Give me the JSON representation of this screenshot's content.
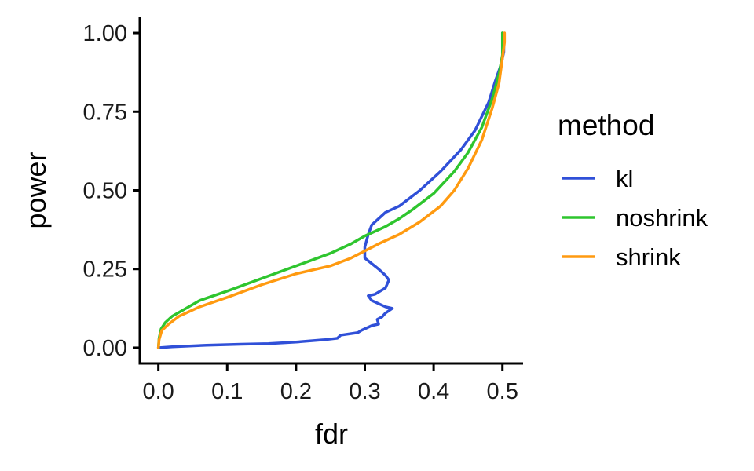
{
  "chart_data": {
    "type": "line",
    "xlabel": "fdr",
    "ylabel": "power",
    "xlim": [
      -0.027,
      0.53
    ],
    "ylim": [
      -0.05,
      1.05
    ],
    "xticks": [
      0.0,
      0.1,
      0.2,
      0.3,
      0.4,
      0.5
    ],
    "xtick_labels": [
      "0.0",
      "0.1",
      "0.2",
      "0.3",
      "0.4",
      "0.5"
    ],
    "yticks": [
      0.0,
      0.25,
      0.5,
      0.75,
      1.0
    ],
    "ytick_labels": [
      "0.00",
      "0.25",
      "0.50",
      "0.75",
      "1.00"
    ],
    "grid": false,
    "legend": {
      "title": "method",
      "placement": "right"
    },
    "series": [
      {
        "name": "kl",
        "color": "#3050d8",
        "points": [
          [
            0.0,
            0.0
          ],
          [
            0.02,
            0.003
          ],
          [
            0.07,
            0.008
          ],
          [
            0.12,
            0.011
          ],
          [
            0.16,
            0.013
          ],
          [
            0.2,
            0.018
          ],
          [
            0.24,
            0.025
          ],
          [
            0.26,
            0.03
          ],
          [
            0.265,
            0.04
          ],
          [
            0.29,
            0.048
          ],
          [
            0.295,
            0.055
          ],
          [
            0.3,
            0.06
          ],
          [
            0.31,
            0.07
          ],
          [
            0.32,
            0.075
          ],
          [
            0.318,
            0.09
          ],
          [
            0.325,
            0.098
          ],
          [
            0.33,
            0.11
          ],
          [
            0.34,
            0.125
          ],
          [
            0.33,
            0.13
          ],
          [
            0.31,
            0.15
          ],
          [
            0.305,
            0.165
          ],
          [
            0.315,
            0.17
          ],
          [
            0.33,
            0.19
          ],
          [
            0.335,
            0.215
          ],
          [
            0.33,
            0.23
          ],
          [
            0.32,
            0.25
          ],
          [
            0.3,
            0.285
          ],
          [
            0.3,
            0.32
          ],
          [
            0.305,
            0.36
          ],
          [
            0.31,
            0.39
          ],
          [
            0.32,
            0.41
          ],
          [
            0.33,
            0.43
          ],
          [
            0.35,
            0.45
          ],
          [
            0.38,
            0.5
          ],
          [
            0.41,
            0.56
          ],
          [
            0.44,
            0.63
          ],
          [
            0.46,
            0.69
          ],
          [
            0.48,
            0.78
          ],
          [
            0.49,
            0.85
          ],
          [
            0.498,
            0.9
          ],
          [
            0.502,
            0.94
          ],
          [
            0.502,
            0.97
          ],
          [
            0.5,
            1.0
          ]
        ]
      },
      {
        "name": "noshrink",
        "color": "#2ec52e",
        "points": [
          [
            0.0,
            0.0
          ],
          [
            0.001,
            0.03
          ],
          [
            0.004,
            0.06
          ],
          [
            0.01,
            0.08
          ],
          [
            0.02,
            0.1
          ],
          [
            0.04,
            0.125
          ],
          [
            0.06,
            0.15
          ],
          [
            0.1,
            0.18
          ],
          [
            0.15,
            0.22
          ],
          [
            0.2,
            0.26
          ],
          [
            0.25,
            0.3
          ],
          [
            0.28,
            0.33
          ],
          [
            0.3,
            0.355
          ],
          [
            0.33,
            0.385
          ],
          [
            0.35,
            0.41
          ],
          [
            0.37,
            0.44
          ],
          [
            0.4,
            0.49
          ],
          [
            0.43,
            0.56
          ],
          [
            0.45,
            0.62
          ],
          [
            0.47,
            0.7
          ],
          [
            0.485,
            0.79
          ],
          [
            0.495,
            0.87
          ],
          [
            0.5,
            0.93
          ],
          [
            0.5,
            1.0
          ]
        ]
      },
      {
        "name": "shrink",
        "color": "#ff9a10",
        "points": [
          [
            0.0,
            0.0
          ],
          [
            0.001,
            0.025
          ],
          [
            0.005,
            0.055
          ],
          [
            0.015,
            0.075
          ],
          [
            0.03,
            0.1
          ],
          [
            0.06,
            0.13
          ],
          [
            0.1,
            0.16
          ],
          [
            0.15,
            0.2
          ],
          [
            0.2,
            0.235
          ],
          [
            0.25,
            0.26
          ],
          [
            0.28,
            0.285
          ],
          [
            0.32,
            0.33
          ],
          [
            0.35,
            0.36
          ],
          [
            0.38,
            0.4
          ],
          [
            0.41,
            0.45
          ],
          [
            0.43,
            0.5
          ],
          [
            0.45,
            0.57
          ],
          [
            0.47,
            0.66
          ],
          [
            0.485,
            0.76
          ],
          [
            0.495,
            0.84
          ],
          [
            0.5,
            0.92
          ],
          [
            0.503,
            0.97
          ],
          [
            0.503,
            1.0
          ]
        ]
      }
    ]
  }
}
